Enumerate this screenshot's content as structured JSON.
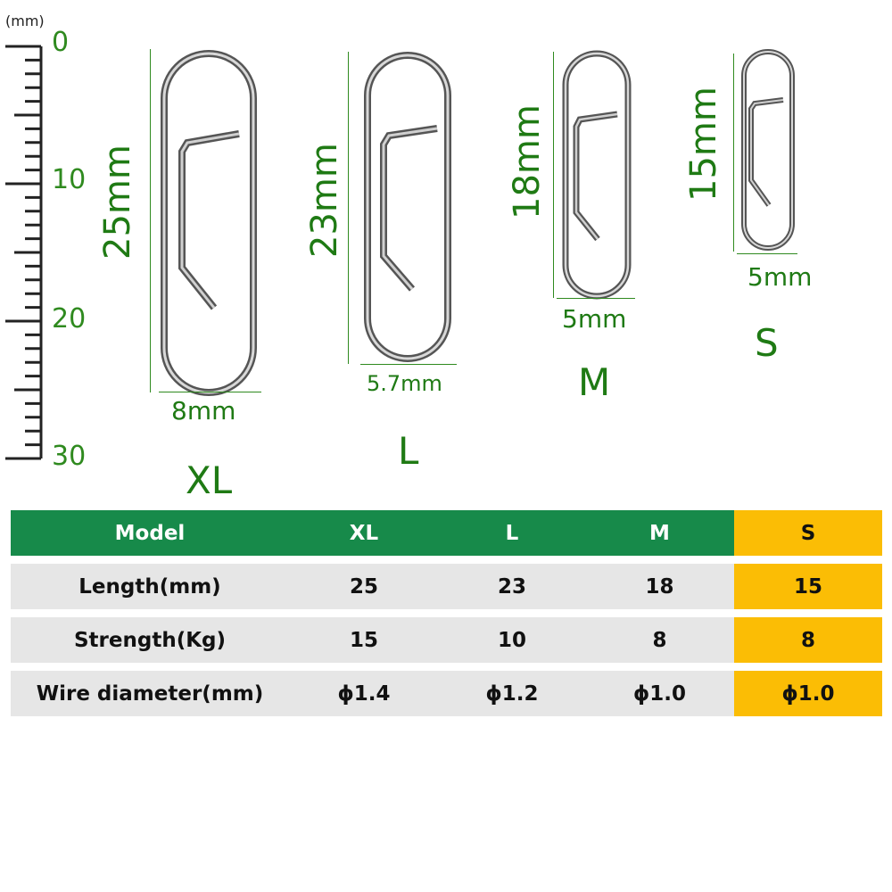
{
  "ruler": {
    "unit": "(mm)",
    "labels": [
      "0",
      "10",
      "20",
      "30"
    ]
  },
  "clips": [
    {
      "size": "XL",
      "length_label": "25mm",
      "width_label": "8mm"
    },
    {
      "size": "L",
      "length_label": "23mm",
      "width_label": "5.7mm"
    },
    {
      "size": "M",
      "length_label": "18mm",
      "width_label": "5mm"
    },
    {
      "size": "S",
      "length_label": "15mm",
      "width_label": "5mm"
    }
  ],
  "table": {
    "header": [
      "Model",
      "XL",
      "L",
      "M",
      "S"
    ],
    "rows": [
      [
        "Length(mm)",
        "25",
        "23",
        "18",
        "15"
      ],
      [
        "Strength(Kg)",
        "15",
        "10",
        "8",
        "8"
      ],
      [
        "Wire diameter(mm)",
        "ϕ1.4",
        "ϕ1.2",
        "ϕ1.0",
        "ϕ1.0"
      ]
    ]
  },
  "colors": {
    "accent_green": "#178a4a",
    "label_green": "#1f7a14",
    "highlight_yellow": "#fbbd05",
    "row_gray": "#e6e6e6"
  }
}
